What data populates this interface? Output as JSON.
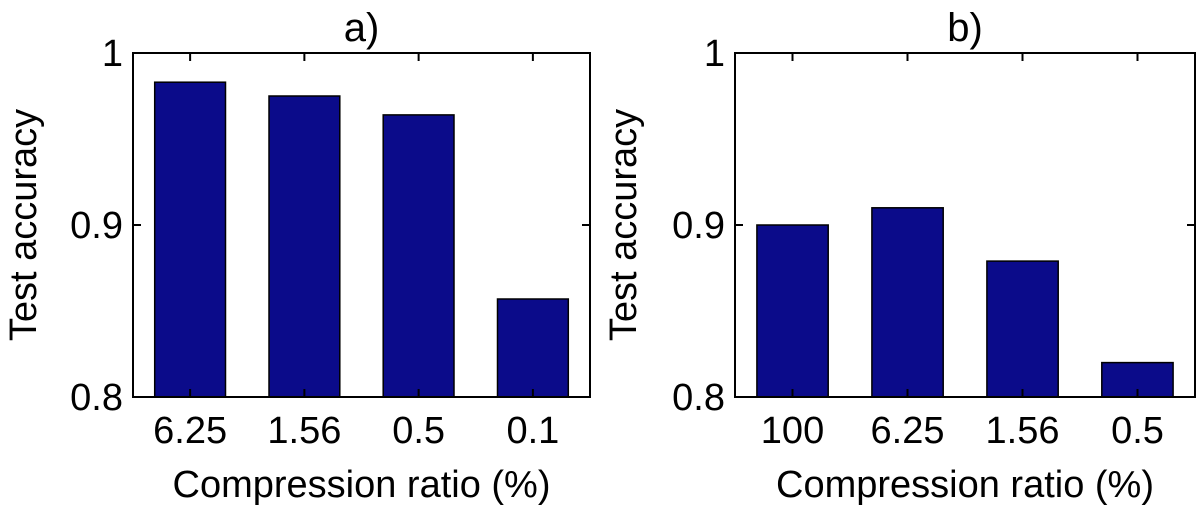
{
  "chart_data": [
    {
      "type": "bar",
      "title": "a)",
      "xlabel": "Compression ratio (%)",
      "ylabel": "Test accuracy",
      "categories": [
        "6.25",
        "1.56",
        "0.5",
        "0.1"
      ],
      "values": [
        0.983,
        0.975,
        0.964,
        0.857
      ],
      "ylim": [
        0.8,
        1.0
      ],
      "yticks": [
        0.8,
        0.9,
        1.0
      ],
      "ytick_labels": [
        "0.8",
        "0.9",
        "1"
      ],
      "bar_color": "#0b0b8a"
    },
    {
      "type": "bar",
      "title": "b)",
      "xlabel": "Compression ratio (%)",
      "ylabel": "Test accuracy",
      "categories": [
        "100",
        "6.25",
        "1.56",
        "0.5"
      ],
      "values": [
        0.9,
        0.91,
        0.879,
        0.82
      ],
      "ylim": [
        0.8,
        1.0
      ],
      "yticks": [
        0.8,
        0.9,
        1.0
      ],
      "ytick_labels": [
        "0.8",
        "0.9",
        "1"
      ],
      "bar_color": "#0b0b8a"
    }
  ]
}
